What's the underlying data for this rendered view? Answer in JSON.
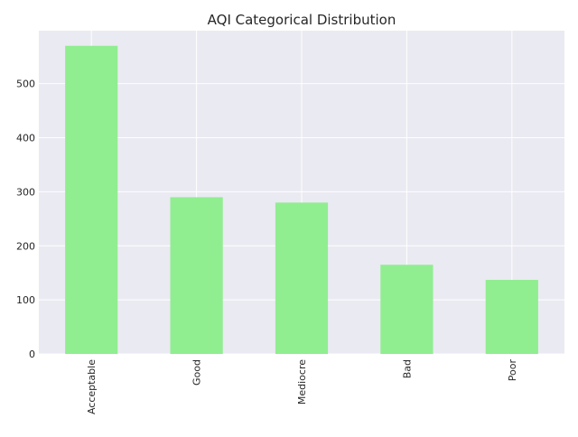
{
  "chart_data": {
    "type": "bar",
    "title": "AQI Categorical Distribution",
    "xlabel": "",
    "ylabel": "",
    "categories": [
      "Acceptable",
      "Good",
      "Mediocre",
      "Bad",
      "Poor"
    ],
    "values": [
      570,
      290,
      280,
      165,
      137
    ],
    "ylim": [
      0,
      598
    ],
    "yticks": [
      0,
      100,
      200,
      300,
      400,
      500
    ],
    "grid": true,
    "legend": "none",
    "colors": {
      "bar": "#90ee90",
      "plot_background": "#eaeaf2",
      "grid": "#ffffff",
      "text": "#262626"
    }
  }
}
